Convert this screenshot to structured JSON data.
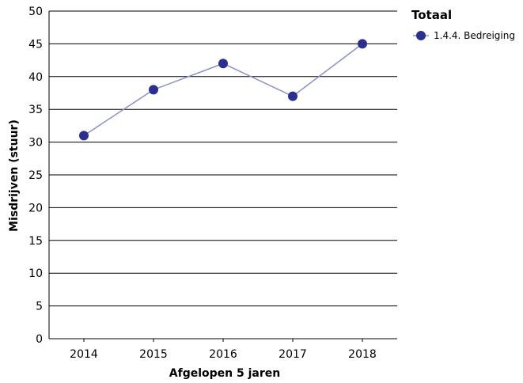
{
  "chart_data": {
    "type": "line",
    "x": [
      "2014",
      "2015",
      "2016",
      "2017",
      "2018"
    ],
    "series": [
      {
        "name": "1.4.4. Bedreiging",
        "values": [
          31,
          38,
          42,
          37,
          45
        ],
        "color": "#2b2f8f",
        "line_color": "#8c8fc9"
      }
    ],
    "xlabel": "Afgelopen 5 jaren",
    "ylabel": "Misdrijven (stuur)",
    "ylim": [
      0,
      50
    ],
    "yticks": [
      0,
      5,
      10,
      15,
      20,
      25,
      30,
      35,
      40,
      45,
      50
    ],
    "grid": "horizontal",
    "legend": {
      "title": "Totaal",
      "placement": "top-right"
    }
  }
}
